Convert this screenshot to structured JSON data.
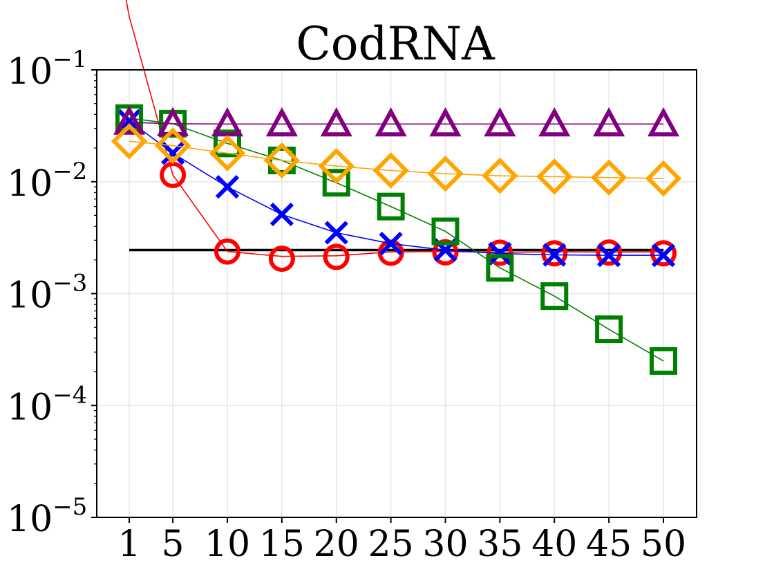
{
  "chart_data": {
    "type": "line",
    "title": "CodRNA",
    "xlabel": "",
    "ylabel": "",
    "yscale": "log",
    "ylim": [
      1e-05,
      0.1
    ],
    "x_ticks": [
      "1",
      "5",
      "10",
      "15",
      "20",
      "25",
      "30",
      "35",
      "40",
      "45",
      "50"
    ],
    "y_ticks": [
      {
        "base": "10",
        "exp": "−1",
        "value": 0.1
      },
      {
        "base": "10",
        "exp": "−2",
        "value": 0.01
      },
      {
        "base": "10",
        "exp": "−3",
        "value": 0.001
      },
      {
        "base": "10",
        "exp": "−4",
        "value": 0.0001
      },
      {
        "base": "10",
        "exp": "−5",
        "value": 1e-05
      }
    ],
    "grid": true,
    "reference_line": {
      "color": "#000000",
      "value": 0.00245,
      "x_range": [
        1,
        50
      ]
    },
    "series": [
      {
        "color": "#ff0000",
        "marker": "circle",
        "line_x": [
          0,
          1,
          5,
          10,
          15,
          20,
          25,
          30,
          35,
          40,
          45,
          50
        ],
        "line_y": [
          1.0,
          0.3,
          0.0115,
          0.00238,
          0.00215,
          0.00218,
          0.00236,
          0.00238,
          0.00234,
          0.00236,
          0.00235,
          0.00236
        ],
        "x": [
          5,
          10,
          15,
          20,
          25,
          30,
          35,
          40,
          45,
          50
        ],
        "y": [
          0.0115,
          0.00238,
          0.00205,
          0.00213,
          0.00232,
          0.00234,
          0.00232,
          0.00229,
          0.00233,
          0.00229
        ]
      },
      {
        "color": "#0000ff",
        "marker": "x",
        "x": [
          1,
          5,
          10,
          15,
          20,
          25,
          30,
          35,
          40,
          45,
          50
        ],
        "y": [
          0.035,
          0.018,
          0.009,
          0.0051,
          0.0035,
          0.0028,
          0.00245,
          0.00228,
          0.00222,
          0.0022,
          0.0022
        ]
      },
      {
        "color": "#008000",
        "marker": "square",
        "x": [
          1,
          5,
          10,
          15,
          20,
          25,
          30,
          35,
          40,
          45,
          50
        ],
        "y": [
          0.037,
          0.033,
          0.022,
          0.0155,
          0.0098,
          0.006,
          0.0036,
          0.0017,
          0.00095,
          0.00048,
          0.00025
        ]
      },
      {
        "color": "#800080",
        "marker": "triangle",
        "x": [
          1,
          5,
          10,
          15,
          20,
          25,
          30,
          35,
          40,
          45,
          50
        ],
        "y": [
          0.034,
          0.033,
          0.0328,
          0.0328,
          0.0328,
          0.0328,
          0.0328,
          0.0328,
          0.0328,
          0.0328,
          0.0328
        ]
      },
      {
        "color": "#ffa500",
        "marker": "diamond",
        "x": [
          1,
          5,
          10,
          15,
          20,
          25,
          30,
          35,
          40,
          45,
          50
        ],
        "y": [
          0.023,
          0.021,
          0.018,
          0.0155,
          0.0138,
          0.0126,
          0.0118,
          0.0113,
          0.0111,
          0.0109,
          0.0107
        ]
      }
    ]
  }
}
